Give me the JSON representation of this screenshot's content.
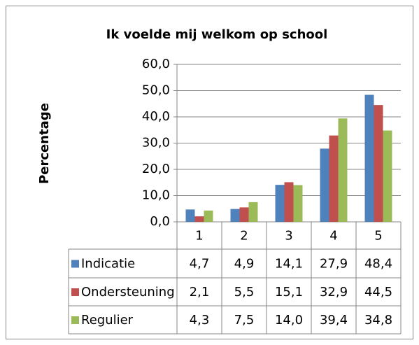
{
  "chart_data": {
    "type": "bar",
    "title": "Ik voelde mij welkom op school",
    "y_label": "Percentage",
    "categories": [
      "1",
      "2",
      "3",
      "4",
      "5"
    ],
    "series": [
      {
        "name": "Indicatie",
        "color": "#4f81bd",
        "values": [
          4.7,
          4.9,
          14.1,
          27.9,
          48.4
        ],
        "value_labels": [
          "4,7",
          "4,9",
          "14,1",
          "27,9",
          "48,4"
        ]
      },
      {
        "name": "Ondersteuning",
        "color": "#c0504d",
        "values": [
          2.1,
          5.5,
          15.1,
          32.9,
          44.5
        ],
        "value_labels": [
          "2,1",
          "5,5",
          "15,1",
          "32,9",
          "44,5"
        ]
      },
      {
        "name": "Regulier",
        "color": "#9bbb59",
        "values": [
          4.3,
          7.5,
          14.0,
          39.4,
          34.8
        ],
        "value_labels": [
          "4,3",
          "7,5",
          "14,0",
          "39,4",
          "34,8"
        ]
      }
    ],
    "ylim": [
      0,
      60
    ],
    "yticks": [
      {
        "value": 0,
        "label": "0,0"
      },
      {
        "value": 10,
        "label": "10,0"
      },
      {
        "value": 20,
        "label": "20,0"
      },
      {
        "value": 30,
        "label": "30,0"
      },
      {
        "value": 40,
        "label": "40,0"
      },
      {
        "value": 50,
        "label": "50,0"
      },
      {
        "value": 60,
        "label": "60,0"
      }
    ],
    "grid": true
  }
}
